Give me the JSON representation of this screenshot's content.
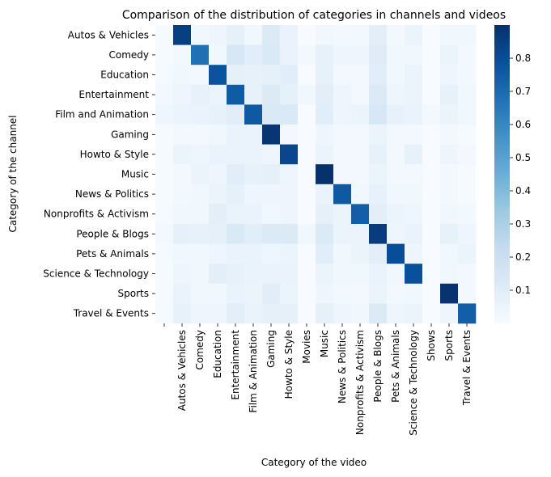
{
  "chart_data": {
    "type": "heatmap",
    "title": "Comparison of the distribution of categories in channels and videos",
    "xlabel": "Category of the video",
    "ylabel": "Category of the channel",
    "x_categories": [
      "",
      "Autos & Vehicles",
      "Comedy",
      "Education",
      "Entertainment",
      "Film & Animation",
      "Gaming",
      "Howto & Style",
      "Movies",
      "Music",
      "News & Politics",
      "Nonprofits & Activism",
      "People & Blogs",
      "Pets & Animals",
      "Science & Technology",
      "Shows",
      "Sports",
      "Travel & Events"
    ],
    "y_categories": [
      "Autos & Vehicles",
      "Comedy",
      "Education",
      "Entertainment",
      "Film and Animation",
      "Gaming",
      "Howto & Style",
      "Music",
      "News & Politics",
      "Nonprofits & Activism",
      "People & Blogs",
      "Pets & Animals",
      "Science & Technology",
      "Sports",
      "Travel & Events"
    ],
    "values": [
      [
        0.01,
        0.85,
        0.03,
        0.04,
        0.08,
        0.03,
        0.12,
        0.06,
        0.0,
        0.03,
        0.02,
        0.02,
        0.09,
        0.02,
        0.05,
        0.0,
        0.03,
        0.03
      ],
      [
        0.01,
        0.02,
        0.68,
        0.03,
        0.14,
        0.1,
        0.13,
        0.06,
        0.02,
        0.07,
        0.04,
        0.04,
        0.11,
        0.03,
        0.03,
        0.0,
        0.05,
        0.02
      ],
      [
        0.01,
        0.03,
        0.02,
        0.78,
        0.08,
        0.07,
        0.08,
        0.1,
        0.0,
        0.07,
        0.02,
        0.02,
        0.1,
        0.03,
        0.05,
        0.0,
        0.04,
        0.02
      ],
      [
        0.02,
        0.04,
        0.07,
        0.05,
        0.75,
        0.07,
        0.12,
        0.08,
        0.03,
        0.09,
        0.04,
        0.02,
        0.12,
        0.04,
        0.05,
        0.0,
        0.07,
        0.03
      ],
      [
        0.04,
        0.05,
        0.06,
        0.07,
        0.1,
        0.76,
        0.13,
        0.13,
        0.0,
        0.1,
        0.04,
        0.05,
        0.14,
        0.07,
        0.06,
        0.02,
        0.05,
        0.03
      ],
      [
        0.01,
        0.02,
        0.02,
        0.03,
        0.06,
        0.06,
        0.88,
        0.02,
        0.0,
        0.04,
        0.02,
        0.02,
        0.05,
        0.02,
        0.02,
        0.0,
        0.02,
        0.01
      ],
      [
        0.01,
        0.05,
        0.04,
        0.06,
        0.06,
        0.06,
        0.04,
        0.82,
        0.0,
        0.05,
        0.02,
        0.02,
        0.07,
        0.02,
        0.07,
        0.0,
        0.04,
        0.02
      ],
      [
        0.01,
        0.02,
        0.05,
        0.04,
        0.1,
        0.07,
        0.08,
        0.04,
        0.0,
        0.9,
        0.02,
        0.02,
        0.05,
        0.02,
        0.02,
        0.0,
        0.02,
        0.01
      ],
      [
        0.01,
        0.02,
        0.03,
        0.05,
        0.08,
        0.04,
        0.04,
        0.04,
        0.0,
        0.06,
        0.76,
        0.03,
        0.07,
        0.03,
        0.03,
        0.0,
        0.02,
        0.01
      ],
      [
        0.01,
        0.03,
        0.03,
        0.09,
        0.06,
        0.06,
        0.03,
        0.04,
        0.0,
        0.08,
        0.05,
        0.74,
        0.09,
        0.05,
        0.04,
        0.0,
        0.03,
        0.02
      ],
      [
        0.02,
        0.08,
        0.07,
        0.08,
        0.13,
        0.1,
        0.12,
        0.12,
        0.03,
        0.12,
        0.05,
        0.05,
        0.86,
        0.04,
        0.06,
        0.0,
        0.07,
        0.04
      ],
      [
        0.01,
        0.03,
        0.03,
        0.04,
        0.06,
        0.06,
        0.04,
        0.05,
        0.0,
        0.1,
        0.03,
        0.05,
        0.09,
        0.8,
        0.04,
        0.0,
        0.03,
        0.05
      ],
      [
        0.01,
        0.04,
        0.03,
        0.09,
        0.07,
        0.06,
        0.06,
        0.06,
        0.0,
        0.05,
        0.03,
        0.03,
        0.06,
        0.03,
        0.79,
        0.0,
        0.03,
        0.02
      ],
      [
        0.01,
        0.06,
        0.03,
        0.03,
        0.06,
        0.05,
        0.1,
        0.05,
        0.0,
        0.04,
        0.02,
        0.02,
        0.05,
        0.02,
        0.03,
        0.0,
        0.89,
        0.02
      ],
      [
        0.01,
        0.07,
        0.04,
        0.04,
        0.09,
        0.06,
        0.08,
        0.08,
        0.0,
        0.08,
        0.04,
        0.03,
        0.12,
        0.04,
        0.05,
        0.0,
        0.04,
        0.74
      ]
    ],
    "value_range": [
      0.0,
      0.9
    ],
    "colorbar": {
      "ticks": [
        "0.1",
        "0.2",
        "0.3",
        "0.4",
        "0.5",
        "0.6",
        "0.7",
        "0.8"
      ],
      "tick_values": [
        0.1,
        0.2,
        0.3,
        0.4,
        0.5,
        0.6,
        0.7,
        0.8
      ]
    },
    "colormap": [
      "#f7fbff",
      "#deebf7",
      "#c6dbef",
      "#9ecae1",
      "#6baed6",
      "#4292c6",
      "#2171b5",
      "#08519c",
      "#08306b"
    ],
    "grid": false,
    "legend": "colorbar on right"
  }
}
